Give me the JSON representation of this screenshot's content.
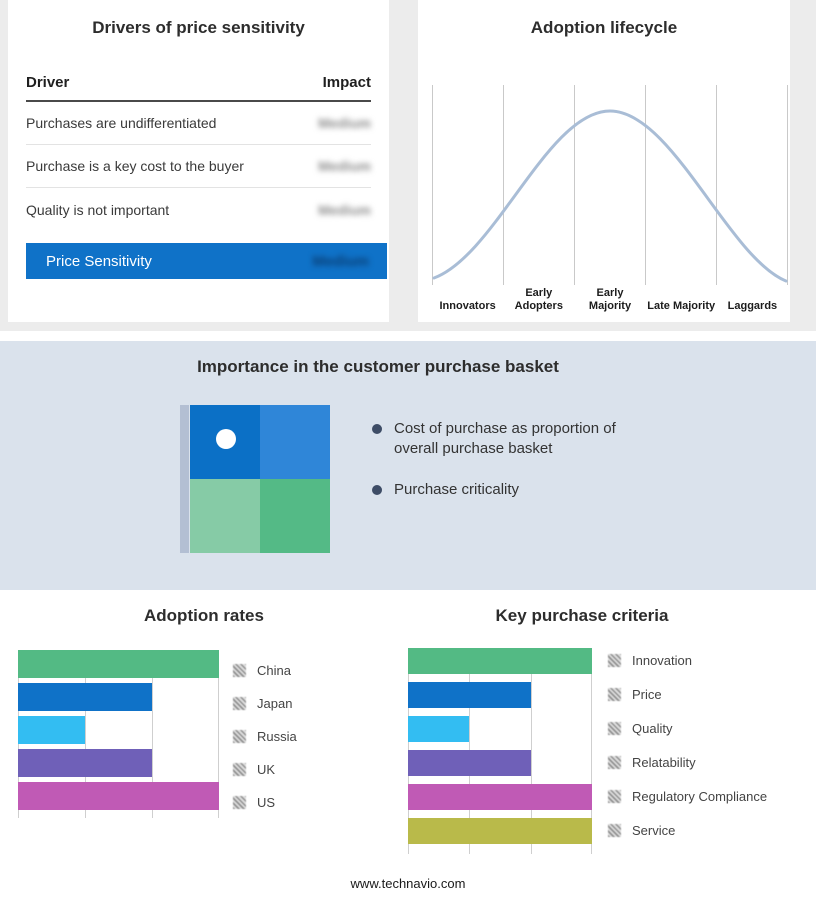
{
  "colors": {
    "accent_blue": "#0f72c8",
    "top_bg": "#ececec",
    "band_bg": "#dae2ec",
    "curve": "#a9bdd6"
  },
  "drivers": {
    "title": "Drivers of price sensitivity",
    "columns": {
      "driver": "Driver",
      "impact": "Impact"
    },
    "rows": [
      {
        "driver": "Purchases are undifferentiated",
        "impact": "Medium"
      },
      {
        "driver": "Purchase is a key cost to the buyer",
        "impact": "Medium"
      },
      {
        "driver": "Quality is not important",
        "impact": "Medium"
      }
    ],
    "summary": {
      "label": "Price Sensitivity",
      "impact": "Medium"
    }
  },
  "lifecycle": {
    "title": "Adoption lifecycle",
    "stages": [
      "Innovators",
      "Early Adopters",
      "Early Majority",
      "Late Majority",
      "Laggards"
    ]
  },
  "basket": {
    "title": "Importance in the customer purchase basket",
    "bullets": [
      "Cost of purchase as proportion of overall purchase basket",
      "Purchase criticality"
    ],
    "axis_color": "#b3bfd3",
    "quadrant": {
      "top_left": "#0b70c6",
      "top_right": "#2f86d8",
      "bottom_left": "#86cba6",
      "bottom_right": "#54ba86"
    }
  },
  "chart_data": [
    {
      "type": "table",
      "title": "Drivers of price sensitivity",
      "columns": [
        "Driver",
        "Impact"
      ],
      "rows": [
        [
          "Purchases are undifferentiated",
          "Medium"
        ],
        [
          "Purchase is a key cost to the buyer",
          "Medium"
        ],
        [
          "Quality is not important",
          "Medium"
        ],
        [
          "Price Sensitivity",
          "Medium"
        ]
      ]
    },
    {
      "type": "line",
      "title": "Adoption lifecycle",
      "categories": [
        "Innovators",
        "Early Adopters",
        "Early Majority",
        "Late Majority",
        "Laggards"
      ],
      "description": "Bell-shaped adoption curve peaking at Early Majority",
      "values": [
        4,
        45,
        100,
        45,
        4
      ],
      "grid": true,
      "legend_position": "none"
    },
    {
      "type": "bar",
      "title": "Adoption rates",
      "orientation": "horizontal",
      "categories": [
        "China",
        "Japan",
        "Russia",
        "UK",
        "US"
      ],
      "values": [
        3,
        2,
        1,
        2,
        3
      ],
      "max": 3,
      "xlim": [
        0,
        3
      ],
      "grid": true,
      "legend_position": "right",
      "colors": [
        "#53ba84",
        "#0f72c8",
        "#33bdf2",
        "#6f60b8",
        "#c05ab5"
      ]
    },
    {
      "type": "bar",
      "title": "Key purchase criteria",
      "orientation": "horizontal",
      "categories": [
        "Innovation",
        "Price",
        "Quality",
        "Relatability",
        "Regulatory Compliance",
        "Service"
      ],
      "values": [
        3,
        2,
        1,
        2,
        3,
        3
      ],
      "max": 3,
      "xlim": [
        0,
        3
      ],
      "grid": true,
      "legend_position": "right",
      "colors": [
        "#53ba84",
        "#0f72c8",
        "#33bdf2",
        "#6f60b8",
        "#c05ab5",
        "#b9ba4a"
      ]
    }
  ],
  "footer": {
    "url": "www.technavio.com"
  }
}
